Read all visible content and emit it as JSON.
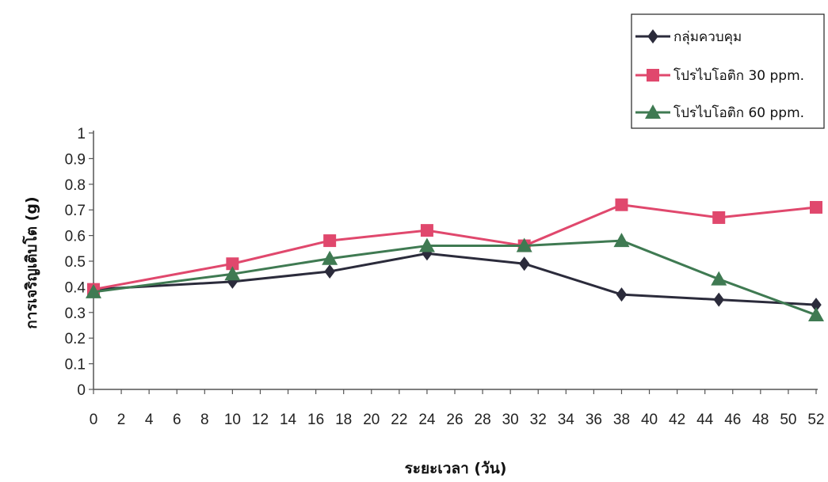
{
  "chart_data": {
    "type": "line",
    "title": "",
    "xlabel": "ระยะเวลา (วัน)",
    "ylabel": "การเจริญเติบโต (g)",
    "xlim": [
      0,
      52
    ],
    "ylim": [
      0,
      1
    ],
    "x_ticks": [
      "0",
      "2",
      "4",
      "6",
      "8",
      "10",
      "12",
      "14",
      "16",
      "18",
      "20",
      "22",
      "24",
      "26",
      "28",
      "30",
      "32",
      "34",
      "36",
      "38",
      "40",
      "42",
      "44",
      "46",
      "48",
      "50",
      "52"
    ],
    "y_ticks": [
      "0",
      "0.1",
      "0.2",
      "0.3",
      "0.4",
      "0.5",
      "0.6",
      "0.7",
      "0.8",
      "0.9",
      "1"
    ],
    "grid": false,
    "legend_position": "top-right",
    "series": [
      {
        "name": "กลุ่มควบคุม",
        "color": "#2b2b3b",
        "marker": "diamond",
        "points": [
          [
            0,
            0.39
          ],
          [
            10,
            0.42
          ],
          [
            17,
            0.46
          ],
          [
            24,
            0.53
          ],
          [
            31,
            0.49
          ],
          [
            38,
            0.37
          ],
          [
            45,
            0.35
          ],
          [
            52,
            0.33
          ]
        ]
      },
      {
        "name": "โปรไบโอติก 30 ppm.",
        "color": "#e0486d",
        "marker": "square",
        "points": [
          [
            0,
            0.39
          ],
          [
            10,
            0.49
          ],
          [
            17,
            0.58
          ],
          [
            24,
            0.62
          ],
          [
            31,
            0.56
          ],
          [
            38,
            0.72
          ],
          [
            45,
            0.67
          ],
          [
            52,
            0.71
          ]
        ]
      },
      {
        "name": "โปรไบโอติก 60 ppm.",
        "color": "#3f7a52",
        "marker": "triangle",
        "points": [
          [
            0,
            0.38
          ],
          [
            10,
            0.45
          ],
          [
            17,
            0.51
          ],
          [
            24,
            0.56
          ],
          [
            31,
            0.56
          ],
          [
            38,
            0.58
          ],
          [
            45,
            0.43
          ],
          [
            52,
            0.29
          ]
        ]
      }
    ]
  }
}
